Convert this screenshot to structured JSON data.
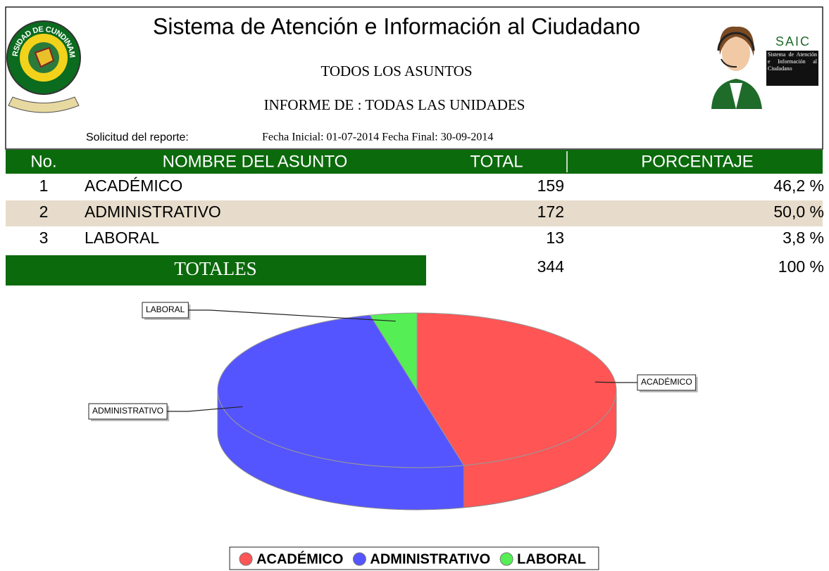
{
  "header": {
    "title": "Sistema de Atención e Información al Ciudadano",
    "subtitle": "TODOS LOS ASUNTOS",
    "report": "INFORME DE : TODAS LAS UNIDADES",
    "request_label": "Solicitud del reporte:",
    "dates": "Fecha Inicial: 01-07-2014 Fecha Final: 30-09-2014",
    "logo_text": "UNIVERSIDAD DE CUNDINAMARCA",
    "brand": "SAIC",
    "brand_caption": "Sistema de Atención e Información al Ciudadano"
  },
  "table": {
    "columns": [
      "No.",
      "NOMBRE DEL ASUNTO",
      "TOTAL",
      "PORCENTAJE"
    ],
    "rows": [
      [
        "1",
        "ACADÉMICO",
        "159",
        "46,2 %"
      ],
      [
        "2",
        "ADMINISTRATIVO",
        "172",
        "50,0 %"
      ],
      [
        "3",
        "LABORAL",
        "13",
        "3,8 %"
      ]
    ],
    "totals": {
      "label": "TOTALES",
      "total": "344",
      "percent": "100 %"
    }
  },
  "chart_data": {
    "type": "pie",
    "categories": [
      "ACADÉMICO",
      "ADMINISTRATIVO",
      "LABORAL"
    ],
    "values": [
      159,
      172,
      13
    ],
    "colors": [
      "#ff5555",
      "#5555ff",
      "#55ee55"
    ],
    "legend": "bottom"
  }
}
